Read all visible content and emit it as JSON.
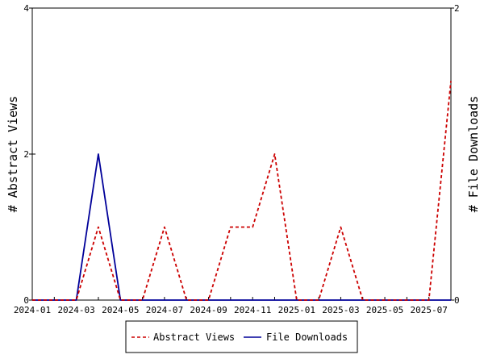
{
  "chart_data": {
    "type": "line",
    "x": [
      "2024-01",
      "2024-02",
      "2024-03",
      "2024-04",
      "2024-05",
      "2024-06",
      "2024-07",
      "2024-08",
      "2024-09",
      "2024-10",
      "2024-11",
      "2024-12",
      "2025-01",
      "2025-02",
      "2025-03",
      "2025-04",
      "2025-05",
      "2025-06",
      "2025-07",
      "2025-08"
    ],
    "x_tick_labels": [
      "2024-01",
      "2024-03",
      "2024-05",
      "2024-07",
      "2024-09",
      "2024-11",
      "2025-01",
      "2025-03",
      "2025-05",
      "2025-07"
    ],
    "series": [
      {
        "name": "Abstract Views",
        "axis": "left",
        "color": "#cc0000",
        "line_style": "dashed",
        "values": [
          0,
          0,
          0,
          1,
          0,
          0,
          1,
          0,
          0,
          1,
          1,
          2,
          0,
          0,
          1,
          0,
          0,
          0,
          0,
          3
        ]
      },
      {
        "name": "File Downloads",
        "axis": "right",
        "color": "#000099",
        "line_style": "solid",
        "values": [
          0,
          0,
          0,
          1,
          0,
          0,
          0,
          0,
          0,
          0,
          0,
          0,
          0,
          0,
          0,
          0,
          0,
          0,
          0,
          0
        ]
      }
    ],
    "ylabel_left": "# Abstract Views",
    "ylabel_right": "# File Downloads",
    "ylim_left": [
      0,
      4
    ],
    "ylim_right": [
      0,
      2
    ],
    "y_ticks_left": [
      "0",
      "2",
      "4"
    ],
    "y_ticks_right": [
      "0",
      "2"
    ],
    "legend_position": "bottom",
    "grid": false
  }
}
